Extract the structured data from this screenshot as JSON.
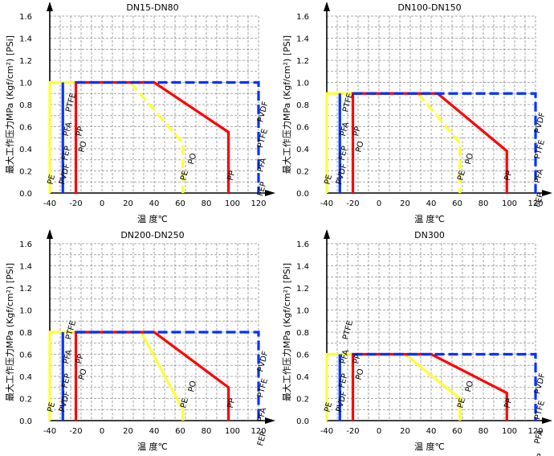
{
  "chart_data": [
    {
      "type": "line",
      "title": "DN15-DN80",
      "ylabel": "最大工作压力MPa (Kgf/cm²) [PSi]",
      "xlabel": "温 度℃",
      "xlim": [
        -40,
        120
      ],
      "ylim": [
        0,
        1.6
      ],
      "xticks": [
        "-40",
        "-20",
        "0",
        "20",
        "40",
        "60",
        "80",
        "100",
        "120"
      ],
      "yticks": [
        "0.0",
        "0.2",
        "0.4",
        "0.6",
        "0.8",
        "1.0",
        "1.2",
        "1.4",
        "1.6"
      ],
      "grid": true,
      "series": [
        {
          "name": "PE",
          "color": "#ffff33",
          "style": "solid",
          "points": [
            [
              -40,
              0
            ],
            [
              -40,
              1.0
            ],
            [
              -20,
              1.0
            ]
          ]
        },
        {
          "name": "PO",
          "color": "#ffff33",
          "style": "dashed",
          "points": [
            [
              22,
              1.0
            ],
            [
              62,
              0.45
            ],
            [
              62,
              0
            ]
          ]
        },
        {
          "name": "PVDF",
          "color": "#0033ff",
          "style": "solid",
          "points": [
            [
              -30,
              0
            ],
            [
              -30,
              1.0
            ]
          ]
        },
        {
          "name": "PP",
          "color": "#ff0000",
          "style": "solid",
          "points": [
            [
              -20,
              0
            ],
            [
              -20,
              1.0
            ],
            [
              40,
              1.0
            ],
            [
              97,
              0.55
            ],
            [
              97,
              0
            ]
          ]
        },
        {
          "name": "PFA/PTFE/FEP",
          "color": "#0033ff",
          "style": "dashed",
          "points": [
            [
              -20,
              1.0
            ],
            [
              120,
              1.0
            ],
            [
              120,
              0
            ]
          ]
        }
      ],
      "labels": {
        "left": [
          "PE",
          "PVDF",
          "FEP",
          "PFA",
          "PTFE",
          "PP",
          "PO"
        ],
        "mid": [
          "PE",
          "PO"
        ],
        "pp": "PP",
        "right": [
          "PVDF",
          "PTFE",
          "PFA",
          "FEP"
        ]
      }
    },
    {
      "type": "line",
      "title": "DN100-DN150",
      "ylabel": "最大工作压力MPa (Kgf/cm²) [PSi]",
      "xlabel": "温 度℃",
      "xlim": [
        -40,
        120
      ],
      "ylim": [
        0,
        1.6
      ],
      "xticks": [
        "-40",
        "-20",
        "0",
        "20",
        "40",
        "60",
        "80",
        "100",
        "120"
      ],
      "yticks": [
        "0.0",
        "0.2",
        "0.4",
        "0.6",
        "0.8",
        "1.0",
        "1.2",
        "1.4",
        "1.6"
      ],
      "grid": true,
      "series": [
        {
          "name": "PE",
          "color": "#ffff33",
          "style": "solid",
          "points": [
            [
              -40,
              0
            ],
            [
              -40,
              0.9
            ],
            [
              -20,
              0.9
            ]
          ]
        },
        {
          "name": "PO",
          "color": "#ffff33",
          "style": "dashed",
          "points": [
            [
              30,
              0.9
            ],
            [
              62,
              0.45
            ],
            [
              62,
              0
            ]
          ]
        },
        {
          "name": "PVDF",
          "color": "#0033ff",
          "style": "solid",
          "points": [
            [
              -30,
              0
            ],
            [
              -30,
              0.9
            ]
          ]
        },
        {
          "name": "PP",
          "color": "#ff0000",
          "style": "solid",
          "points": [
            [
              -20,
              0
            ],
            [
              -20,
              0.9
            ],
            [
              45,
              0.9
            ],
            [
              98,
              0.38
            ],
            [
              98,
              0
            ]
          ]
        },
        {
          "name": "PFA/PTFE/FEP",
          "color": "#0033ff",
          "style": "dashed",
          "points": [
            [
              -20,
              0.9
            ],
            [
              120,
              0.9
            ],
            [
              120,
              0
            ]
          ]
        }
      ],
      "labels": {
        "left": [
          "PE",
          "PVDF",
          "FEP",
          "PFA",
          "PTFE",
          "PP",
          "PO"
        ],
        "mid": [
          "PE",
          "PO"
        ],
        "pp": "PP",
        "right": [
          "PVDF",
          "PTFE",
          "PFA",
          "FEP"
        ]
      }
    },
    {
      "type": "line",
      "title": "DN200-DN250",
      "ylabel": "最大工作压力MPa (Kgf/cm²) [PSi]",
      "xlabel": "温 度℃",
      "xlim": [
        -40,
        120
      ],
      "ylim": [
        0,
        1.6
      ],
      "xticks": [
        "-40",
        "-20",
        "0",
        "20",
        "40",
        "60",
        "80",
        "100",
        "120"
      ],
      "yticks": [
        "0.0",
        "0.2",
        "0.4",
        "0.6",
        "0.8",
        "1.0",
        "1.2",
        "1.4",
        "1.6"
      ],
      "grid": true,
      "series": [
        {
          "name": "PE",
          "color": "#ffff33",
          "style": "solid",
          "points": [
            [
              -40,
              0
            ],
            [
              -40,
              0.8
            ],
            [
              -20,
              0.8
            ]
          ]
        },
        {
          "name": "PO",
          "color": "#ffff33",
          "style": "solid",
          "points": [
            [
              30,
              0.8
            ],
            [
              62,
              0.1
            ],
            [
              62,
              0
            ]
          ]
        },
        {
          "name": "PVDF",
          "color": "#0033ff",
          "style": "solid",
          "points": [
            [
              -30,
              0
            ],
            [
              -30,
              0.8
            ]
          ]
        },
        {
          "name": "PP",
          "color": "#ff0000",
          "style": "solid",
          "points": [
            [
              -20,
              0
            ],
            [
              -20,
              0.8
            ],
            [
              40,
              0.8
            ],
            [
              97,
              0.3
            ],
            [
              97,
              0
            ]
          ]
        },
        {
          "name": "PFA/PTFE/FEP",
          "color": "#0033ff",
          "style": "dashed",
          "points": [
            [
              -20,
              0.8
            ],
            [
              120,
              0.8
            ],
            [
              120,
              0
            ]
          ]
        }
      ],
      "labels": {
        "left": [
          "PE",
          "PVDF",
          "FEP",
          "PFA",
          "PTFE",
          "PP",
          "PO"
        ],
        "mid": [
          "PE",
          "PO"
        ],
        "pp": "PP",
        "right": [
          "PVDF",
          "PTFE",
          "PFA",
          "FEP"
        ]
      }
    },
    {
      "type": "line",
      "title": "DN300",
      "ylabel": "最大工作压力MPa (Kgf/cm²) [PSi]",
      "xlabel": "温 度℃",
      "xlim": [
        -40,
        120
      ],
      "ylim": [
        0,
        1.6
      ],
      "xticks": [
        "-40",
        "-20",
        "0",
        "20",
        "40",
        "60",
        "80",
        "100",
        "120"
      ],
      "yticks": [
        "0.0",
        "0.2",
        "0.4",
        "0.6",
        "0.8",
        "1.0",
        "1.2",
        "1.4",
        "1.6"
      ],
      "grid": true,
      "series": [
        {
          "name": "PE",
          "color": "#ffff33",
          "style": "solid",
          "points": [
            [
              -40,
              0
            ],
            [
              -40,
              0.6
            ],
            [
              -20,
              0.6
            ]
          ]
        },
        {
          "name": "PO",
          "color": "#ffff33",
          "style": "solid",
          "points": [
            [
              20,
              0.6
            ],
            [
              62,
              0.2
            ],
            [
              62,
              0
            ]
          ]
        },
        {
          "name": "PVDF",
          "color": "#0033ff",
          "style": "solid",
          "points": [
            [
              -30,
              0
            ],
            [
              -30,
              0.6
            ]
          ]
        },
        {
          "name": "PP",
          "color": "#ff0000",
          "style": "solid",
          "points": [
            [
              -20,
              0
            ],
            [
              -20,
              0.6
            ],
            [
              40,
              0.6
            ],
            [
              98,
              0.25
            ],
            [
              98,
              0
            ]
          ]
        },
        {
          "name": "PFA/PTFE/FEP",
          "color": "#0033ff",
          "style": "dashed",
          "points": [
            [
              -20,
              0.6
            ],
            [
              120,
              0.6
            ],
            [
              120,
              0
            ]
          ]
        }
      ],
      "labels": {
        "left": [
          "PE",
          "PVDF",
          "FEP",
          "PFA",
          "PTFE",
          "PP",
          "PO"
        ],
        "mid": [
          "PE",
          "PO"
        ],
        "pp": "PP",
        "right": [
          "PVDF",
          "PTFE",
          "PFA",
          "FEP"
        ]
      }
    }
  ]
}
